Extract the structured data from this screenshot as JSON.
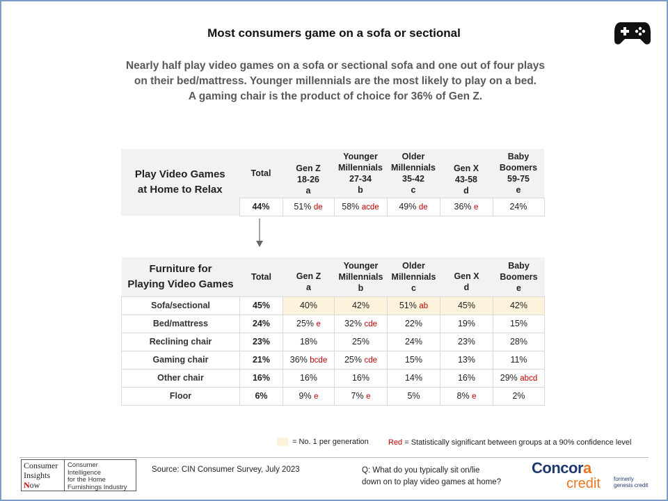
{
  "title": "Most consumers game on a sofa or sectional",
  "subtitle": [
    "Nearly half play video games on a sofa or sectional sofa and one out of four plays",
    "on their bed/mattress. Younger millennials are the most likely to play on a bed.",
    "A gaming chair is the product of choice for 36% of Gen Z."
  ],
  "table1": {
    "title": [
      "Play Video Games",
      "at Home to Relax"
    ],
    "columns": [
      {
        "lines": [
          "Total"
        ]
      },
      {
        "lines": [
          "Gen Z",
          "18-26",
          "a"
        ]
      },
      {
        "lines": [
          "Younger",
          "Millennials",
          "27-34",
          "b"
        ]
      },
      {
        "lines": [
          "Older",
          "Millennials",
          "35-42",
          "c"
        ]
      },
      {
        "lines": [
          "Gen X",
          "43-58",
          "d"
        ]
      },
      {
        "lines": [
          "Baby",
          "Boomers",
          "59-75",
          "e"
        ]
      }
    ],
    "row": {
      "total": "44%",
      "cells": [
        {
          "value": "51%",
          "sig": "de"
        },
        {
          "value": "58%",
          "sig": "acde"
        },
        {
          "value": "49%",
          "sig": "de"
        },
        {
          "value": "36%",
          "sig": "e"
        },
        {
          "value": "24%",
          "sig": ""
        }
      ]
    }
  },
  "table2": {
    "title": [
      "Furniture for",
      "Playing Video Games"
    ],
    "columns": [
      {
        "lines": [
          "Total"
        ]
      },
      {
        "lines": [
          "Gen Z",
          "a"
        ]
      },
      {
        "lines": [
          "Younger",
          "Millennials",
          "b"
        ]
      },
      {
        "lines": [
          "Older",
          "Millennials",
          "c"
        ]
      },
      {
        "lines": [
          "Gen X",
          "d"
        ]
      },
      {
        "lines": [
          "Baby",
          "Boomers",
          "e"
        ]
      }
    ],
    "rows": [
      {
        "label": "Sofa/sectional",
        "total": "45%",
        "cells": [
          {
            "value": "40%",
            "sig": "",
            "top": true
          },
          {
            "value": "42%",
            "sig": "",
            "top": true
          },
          {
            "value": "51%",
            "sig": "ab",
            "top": true
          },
          {
            "value": "45%",
            "sig": "",
            "top": true
          },
          {
            "value": "42%",
            "sig": "",
            "top": true
          }
        ]
      },
      {
        "label": "Bed/mattress",
        "total": "24%",
        "cells": [
          {
            "value": "25%",
            "sig": "e"
          },
          {
            "value": "32%",
            "sig": "cde"
          },
          {
            "value": "22%",
            "sig": ""
          },
          {
            "value": "19%",
            "sig": ""
          },
          {
            "value": "15%",
            "sig": ""
          }
        ]
      },
      {
        "label": "Reclining chair",
        "total": "23%",
        "cells": [
          {
            "value": "18%",
            "sig": ""
          },
          {
            "value": "25%",
            "sig": ""
          },
          {
            "value": "24%",
            "sig": ""
          },
          {
            "value": "23%",
            "sig": ""
          },
          {
            "value": "28%",
            "sig": ""
          }
        ]
      },
      {
        "label": "Gaming chair",
        "total": "21%",
        "cells": [
          {
            "value": "36%",
            "sig": "bcde"
          },
          {
            "value": "25%",
            "sig": "cde"
          },
          {
            "value": "15%",
            "sig": ""
          },
          {
            "value": "13%",
            "sig": ""
          },
          {
            "value": "11%",
            "sig": ""
          }
        ]
      },
      {
        "label": "Other chair",
        "total": "16%",
        "cells": [
          {
            "value": "16%",
            "sig": ""
          },
          {
            "value": "16%",
            "sig": ""
          },
          {
            "value": "14%",
            "sig": ""
          },
          {
            "value": "16%",
            "sig": ""
          },
          {
            "value": "29%",
            "sig": "abcd"
          }
        ]
      },
      {
        "label": "Floor",
        "total": "6%",
        "cells": [
          {
            "value": "9%",
            "sig": "e"
          },
          {
            "value": "7%",
            "sig": "e"
          },
          {
            "value": "5%",
            "sig": ""
          },
          {
            "value": "8%",
            "sig": "e"
          },
          {
            "value": "2%",
            "sig": ""
          }
        ]
      }
    ]
  },
  "legend": {
    "top_label": "= No. 1 per generation",
    "red_word": "Red",
    "red_label": " = Statistically significant between groups at a 90% confidence level",
    "highlight_color": "#fdf3dc",
    "significance_color": "#c00000"
  },
  "footer": {
    "cin_logo": {
      "line1": "Consumer",
      "line2": "Insights",
      "line3_n": "N",
      "line3_rest": "ow",
      "tagline": [
        "Consumer Intelligence",
        "for the Home",
        "Furnishings Industry"
      ]
    },
    "source": "Source: CIN Consumer Survey, July 2023",
    "question": [
      "Q: What do you typically sit on/lie",
      "down on to play video games at home?"
    ],
    "concora": {
      "word1_a": "Concor",
      "word1_b": "a",
      "word2": "credit",
      "formerly": [
        "formerly",
        "genesis credit"
      ]
    }
  },
  "icons": {
    "gamepad": "gamepad-icon",
    "arrow": "arrow-down-icon"
  }
}
